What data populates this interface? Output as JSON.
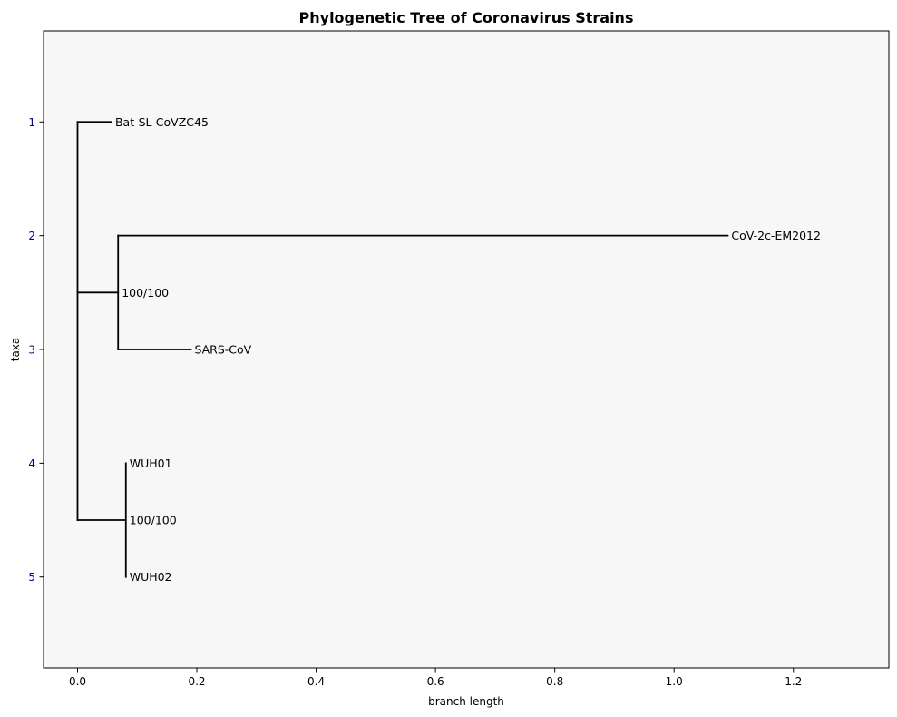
{
  "chart_data": {
    "type": "phylogenetic-tree",
    "title": "Phylogenetic Tree of Coronavirus Strains",
    "xlabel": "branch length",
    "ylabel": "taxa",
    "xlim": [
      -0.057,
      1.36
    ],
    "ylim": [
      5.8,
      0.2
    ],
    "x_ticks": [
      {
        "value": 0.0,
        "label": "0.0"
      },
      {
        "value": 0.2,
        "label": "0.2"
      },
      {
        "value": 0.4,
        "label": "0.4"
      },
      {
        "value": 0.6,
        "label": "0.6"
      },
      {
        "value": 0.8,
        "label": "0.8"
      },
      {
        "value": 1.0,
        "label": "1.0"
      },
      {
        "value": 1.2,
        "label": "1.2"
      }
    ],
    "y_ticks": [
      {
        "value": 1,
        "label": "1"
      },
      {
        "value": 2,
        "label": "2"
      },
      {
        "value": 3,
        "label": "3"
      },
      {
        "value": 4,
        "label": "4"
      },
      {
        "value": 5,
        "label": "5"
      }
    ],
    "leaves": [
      {
        "name": "Bat-SL-CoVZC45",
        "x": 0.057,
        "y": 1
      },
      {
        "name": "CoV-2c-EM2012",
        "x": 1.09,
        "y": 2
      },
      {
        "name": "SARS-CoV",
        "x": 0.19,
        "y": 3
      },
      {
        "name": "WUH01",
        "x": 0.081,
        "y": 4
      },
      {
        "name": "WUH02",
        "x": 0.081,
        "y": 5
      }
    ],
    "internal_nodes": [
      {
        "label": "100/100",
        "x": 0.068,
        "y": 2.5
      },
      {
        "label": "100/100",
        "x": 0.081,
        "y": 4.5
      }
    ],
    "root": {
      "x": 0.0,
      "y_min": 1,
      "y_max": 4.5
    },
    "edges": [
      {
        "from": [
          0.0,
          1
        ],
        "to": [
          0.057,
          1
        ]
      },
      {
        "from": [
          0.0,
          2.5
        ],
        "to": [
          0.068,
          2.5
        ]
      },
      {
        "from": [
          0.0,
          4.5
        ],
        "to": [
          0.081,
          4.5
        ]
      },
      {
        "from": [
          0.068,
          2
        ],
        "to": [
          1.09,
          2
        ]
      },
      {
        "from": [
          0.068,
          3
        ],
        "to": [
          0.19,
          3
        ]
      },
      {
        "from": [
          0.068,
          2
        ],
        "to": [
          0.068,
          3
        ]
      },
      {
        "from": [
          0.081,
          4
        ],
        "to": [
          0.081,
          5
        ]
      },
      {
        "from": [
          0.0,
          1
        ],
        "to": [
          0.0,
          4.5
        ]
      }
    ],
    "background_color": "#f7f7f7",
    "line_color": "#000000",
    "ytick_color": "#00008b"
  }
}
